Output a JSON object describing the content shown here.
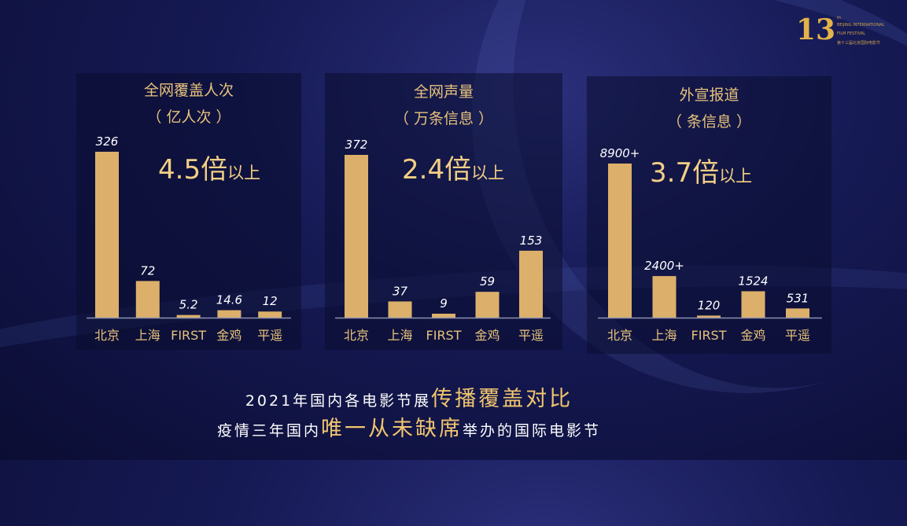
{
  "logo": {
    "number": "13",
    "suffix": "th",
    "line1": "BEIJING INTERNATIONAL",
    "line2": "FILM FESTIVAL",
    "line3": "第十三届北京国际电影节"
  },
  "colors": {
    "bar": "#dcb06a",
    "title": "#e7c27c",
    "value_label": "#ffffff"
  },
  "chart_data": [
    {
      "type": "bar",
      "title": "全网覆盖人次",
      "subtitle": "（ 亿人次 ）",
      "highlight": {
        "value": "4.5倍",
        "suffix": "以上"
      },
      "categories": [
        "北京",
        "上海",
        "FIRST",
        "金鸡",
        "平遥"
      ],
      "values": [
        326,
        72,
        5.2,
        14.6,
        12
      ],
      "labels": [
        "326",
        "72",
        "5.2",
        "14.6",
        "12"
      ]
    },
    {
      "type": "bar",
      "title": "全网声量",
      "subtitle": "（ 万条信息 ）",
      "highlight": {
        "value": "2.4倍",
        "suffix": "以上"
      },
      "categories": [
        "北京",
        "上海",
        "FIRST",
        "金鸡",
        "平遥"
      ],
      "values": [
        372,
        37,
        9,
        59,
        153
      ],
      "labels": [
        "372",
        "37",
        "9",
        "59",
        "153"
      ]
    },
    {
      "type": "bar",
      "title": "外宣报道",
      "subtitle": "（ 条信息 ）",
      "highlight": {
        "value": "3.7倍",
        "suffix": "以上"
      },
      "categories": [
        "北京",
        "上海",
        "FIRST",
        "金鸡",
        "平遥"
      ],
      "values": [
        8900,
        2400,
        120,
        1524,
        531
      ],
      "labels": [
        "8900+",
        "2400+",
        "120",
        "1524",
        "531"
      ]
    }
  ],
  "footer": {
    "line1_a": "2021年国内各电影节展",
    "line1_b": "传播覆盖对比",
    "line2_a": "疫情三年国内",
    "line2_b": "唯一从未缺席",
    "line2_c": "举办的国际电影节"
  }
}
